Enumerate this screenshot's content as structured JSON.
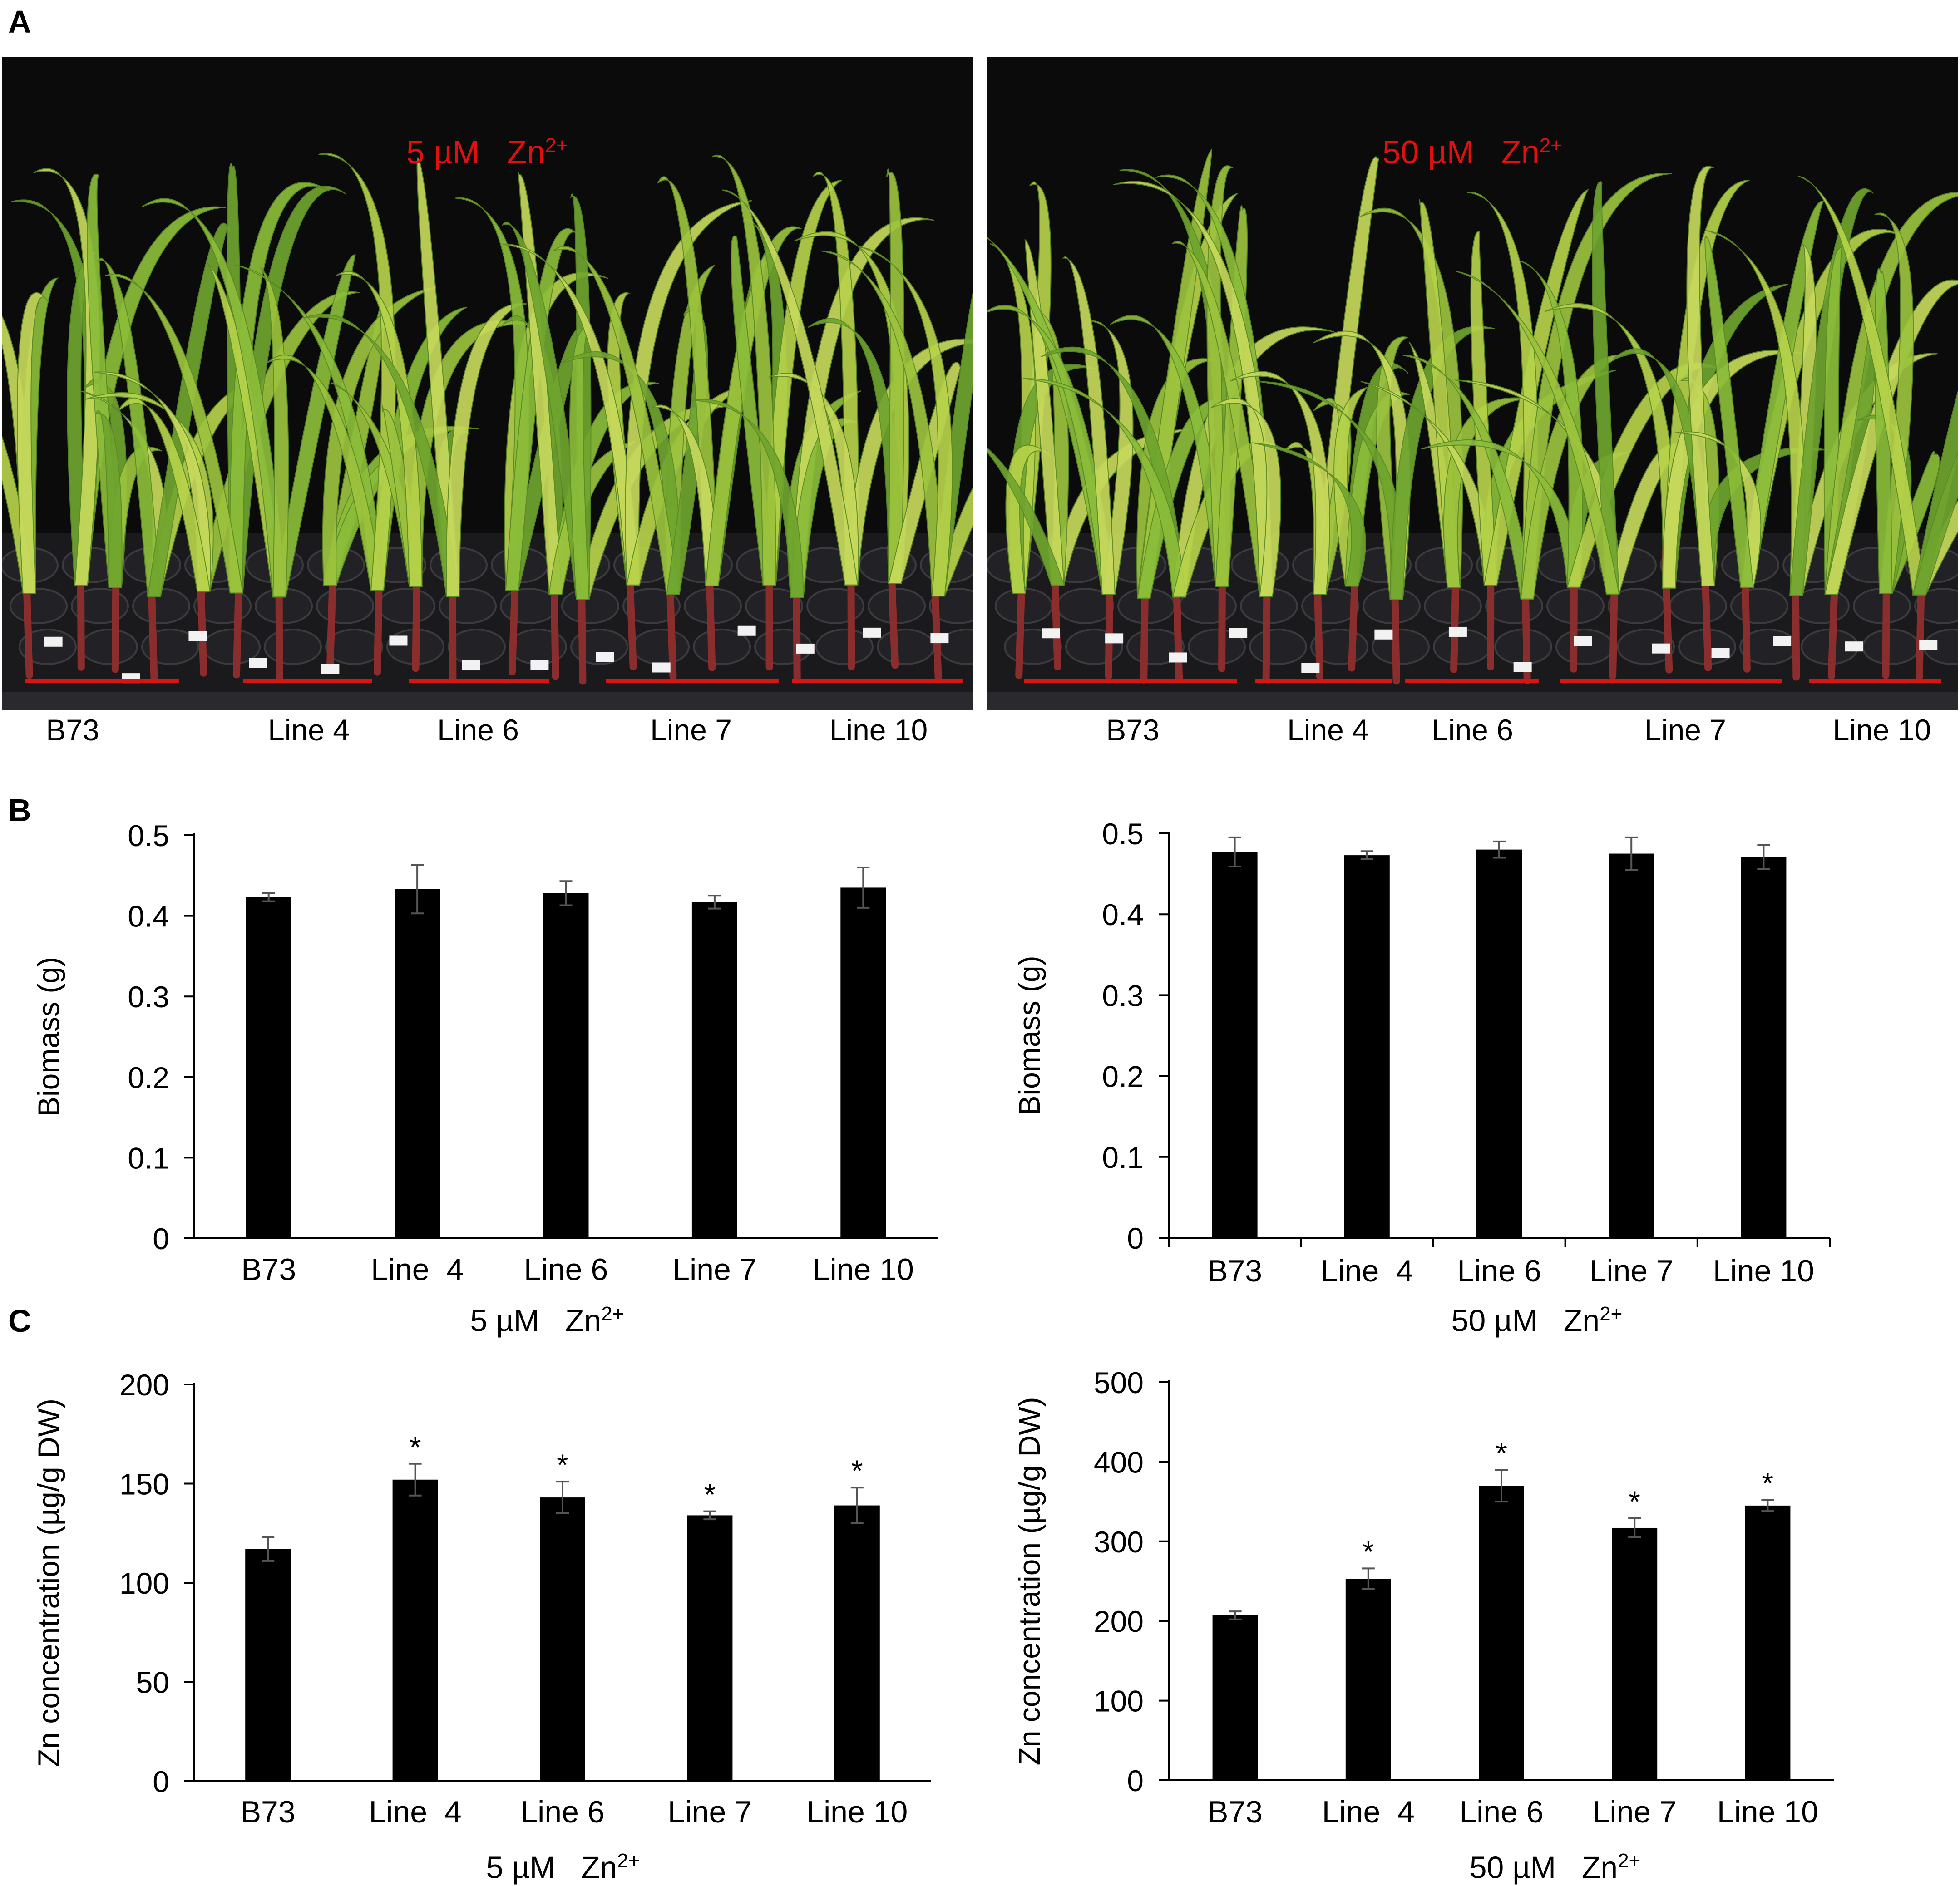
{
  "panels": {
    "a": "A",
    "b": "B",
    "c": "C"
  },
  "photos": [
    {
      "conc": "5 µM",
      "ion": "Zn",
      "charge": "2+",
      "lines": [
        "B73",
        "Line  4",
        "Line 6",
        "Line 7",
        "Line 10"
      ]
    },
    {
      "conc": "50 µM",
      "ion": "Zn",
      "charge": "2+",
      "lines": [
        "B73",
        "Line  4",
        "Line 6",
        "Line 7",
        "Line 10"
      ]
    }
  ],
  "colors": {
    "bar": "#000000",
    "photo_label": "#e01010",
    "leaf_light": "#b7d24a",
    "leaf_dark": "#6fa52e",
    "stem": "#8a2d2d",
    "tray": "#1a1a1c",
    "marker_line": "#d91414"
  },
  "chart_data": [
    {
      "type": "bar",
      "panel": "B",
      "categories": [
        "B73",
        "Line  4",
        "Line 6",
        "Line 7",
        "Line 10"
      ],
      "values": [
        0.423,
        0.433,
        0.428,
        0.417,
        0.435
      ],
      "errors": [
        0.005,
        0.03,
        0.015,
        0.008,
        0.025
      ],
      "significant": [
        false,
        false,
        false,
        false,
        false
      ],
      "ylabel": "Biomass (g)",
      "xlabel_conc": "5 µM",
      "xlabel_ion": "Zn",
      "xlabel_charge": "2+",
      "yticks": [
        "0",
        "0.1",
        "0.2",
        "0.3",
        "0.4",
        "0.5"
      ],
      "ylim": [
        0,
        0.5
      ],
      "grid": false
    },
    {
      "type": "bar",
      "panel": "B",
      "categories": [
        "B73",
        "Line  4",
        "Line 6",
        "Line 7",
        "Line 10"
      ],
      "values": [
        0.477,
        0.473,
        0.48,
        0.475,
        0.471
      ],
      "errors": [
        0.018,
        0.005,
        0.01,
        0.02,
        0.015
      ],
      "significant": [
        false,
        false,
        false,
        false,
        false
      ],
      "ylabel": "Biomass (g)",
      "xlabel_conc": "50 µM",
      "xlabel_ion": "Zn",
      "xlabel_charge": "2+",
      "yticks": [
        "0",
        "0.1",
        "0.2",
        "0.3",
        "0.4",
        "0.5"
      ],
      "ylim": [
        0,
        0.5
      ],
      "grid": false
    },
    {
      "type": "bar",
      "panel": "C",
      "categories": [
        "B73",
        "Line  4",
        "Line 6",
        "Line 7",
        "Line 10"
      ],
      "values": [
        117,
        152,
        143,
        134,
        139
      ],
      "errors": [
        6,
        8,
        8,
        2,
        9
      ],
      "significant": [
        false,
        true,
        true,
        true,
        true
      ],
      "sig_marker": "*",
      "ylabel": "Zn concentration (µg/g DW)",
      "xlabel_conc": "5 µM",
      "xlabel_ion": "Zn",
      "xlabel_charge": "2+",
      "yticks": [
        "0",
        "50",
        "100",
        "150",
        "200"
      ],
      "ylim": [
        0,
        200
      ],
      "grid": false
    },
    {
      "type": "bar",
      "panel": "C",
      "categories": [
        "B73",
        "Line  4",
        "Line 6",
        "Line 7",
        "Line 10"
      ],
      "values": [
        207,
        253,
        370,
        317,
        345
      ],
      "errors": [
        5,
        13,
        20,
        12,
        7
      ],
      "significant": [
        false,
        true,
        true,
        true,
        true
      ],
      "sig_marker": "*",
      "ylabel": "Zn concentration (µg/g DW)",
      "xlabel_conc": "50 µM",
      "xlabel_ion": "Zn",
      "xlabel_charge": "2+",
      "yticks": [
        "0",
        "100",
        "200",
        "300",
        "400",
        "500"
      ],
      "ylim": [
        0,
        500
      ],
      "grid": false
    }
  ]
}
